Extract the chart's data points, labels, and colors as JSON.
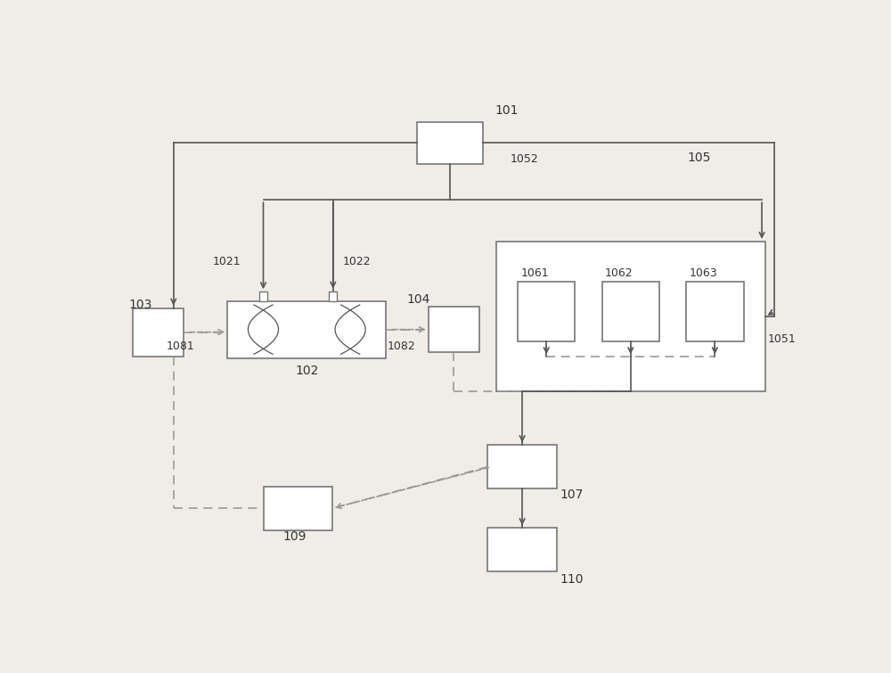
{
  "bg_color": "#f0ede8",
  "lc": "#555555",
  "fc": "#ffffff",
  "ec": "#777777",
  "dc": "#999999",
  "tc": "#333333",
  "figw": 10.0,
  "figh": 7.55,
  "dpi": 100,
  "boxes": {
    "101": [
      0.49,
      0.88,
      0.095,
      0.082
    ],
    "102": [
      0.283,
      0.52,
      0.23,
      0.11
    ],
    "103": [
      0.068,
      0.515,
      0.073,
      0.093
    ],
    "104": [
      0.496,
      0.52,
      0.074,
      0.088
    ],
    "105": [
      0.752,
      0.545,
      0.39,
      0.29
    ],
    "1061": [
      0.63,
      0.555,
      0.083,
      0.115
    ],
    "1062": [
      0.752,
      0.555,
      0.083,
      0.115
    ],
    "1063": [
      0.874,
      0.555,
      0.083,
      0.115
    ],
    "107": [
      0.595,
      0.255,
      0.1,
      0.085
    ],
    "109": [
      0.27,
      0.175,
      0.1,
      0.085
    ],
    "110": [
      0.595,
      0.095,
      0.1,
      0.085
    ]
  },
  "label_positions": {
    "101": [
      0.555,
      0.93,
      "left",
      "bottom",
      10
    ],
    "102": [
      0.283,
      0.452,
      "center",
      "top",
      10
    ],
    "103": [
      0.025,
      0.555,
      "left",
      "bottom",
      10
    ],
    "104": [
      0.462,
      0.565,
      "right",
      "bottom",
      10
    ],
    "105": [
      0.868,
      0.84,
      "right",
      "bottom",
      10
    ],
    "1021": [
      0.188,
      0.64,
      "right",
      "bottom",
      9
    ],
    "1022": [
      0.335,
      0.64,
      "left",
      "bottom",
      9
    ],
    "1051": [
      0.95,
      0.512,
      "left",
      "top",
      9
    ],
    "1052": [
      0.577,
      0.838,
      "left",
      "bottom",
      9
    ],
    "1061": [
      0.593,
      0.618,
      "left",
      "bottom",
      9
    ],
    "1062": [
      0.715,
      0.618,
      "left",
      "bottom",
      9
    ],
    "1063": [
      0.837,
      0.618,
      "left",
      "bottom",
      9
    ],
    "1081": [
      0.12,
      0.498,
      "right",
      "top",
      9
    ],
    "1082": [
      0.4,
      0.498,
      "left",
      "top",
      9
    ],
    "107": [
      0.65,
      0.213,
      "left",
      "top",
      10
    ],
    "109": [
      0.265,
      0.132,
      "center",
      "top",
      10
    ],
    "110": [
      0.65,
      0.05,
      "left",
      "top",
      10
    ]
  }
}
